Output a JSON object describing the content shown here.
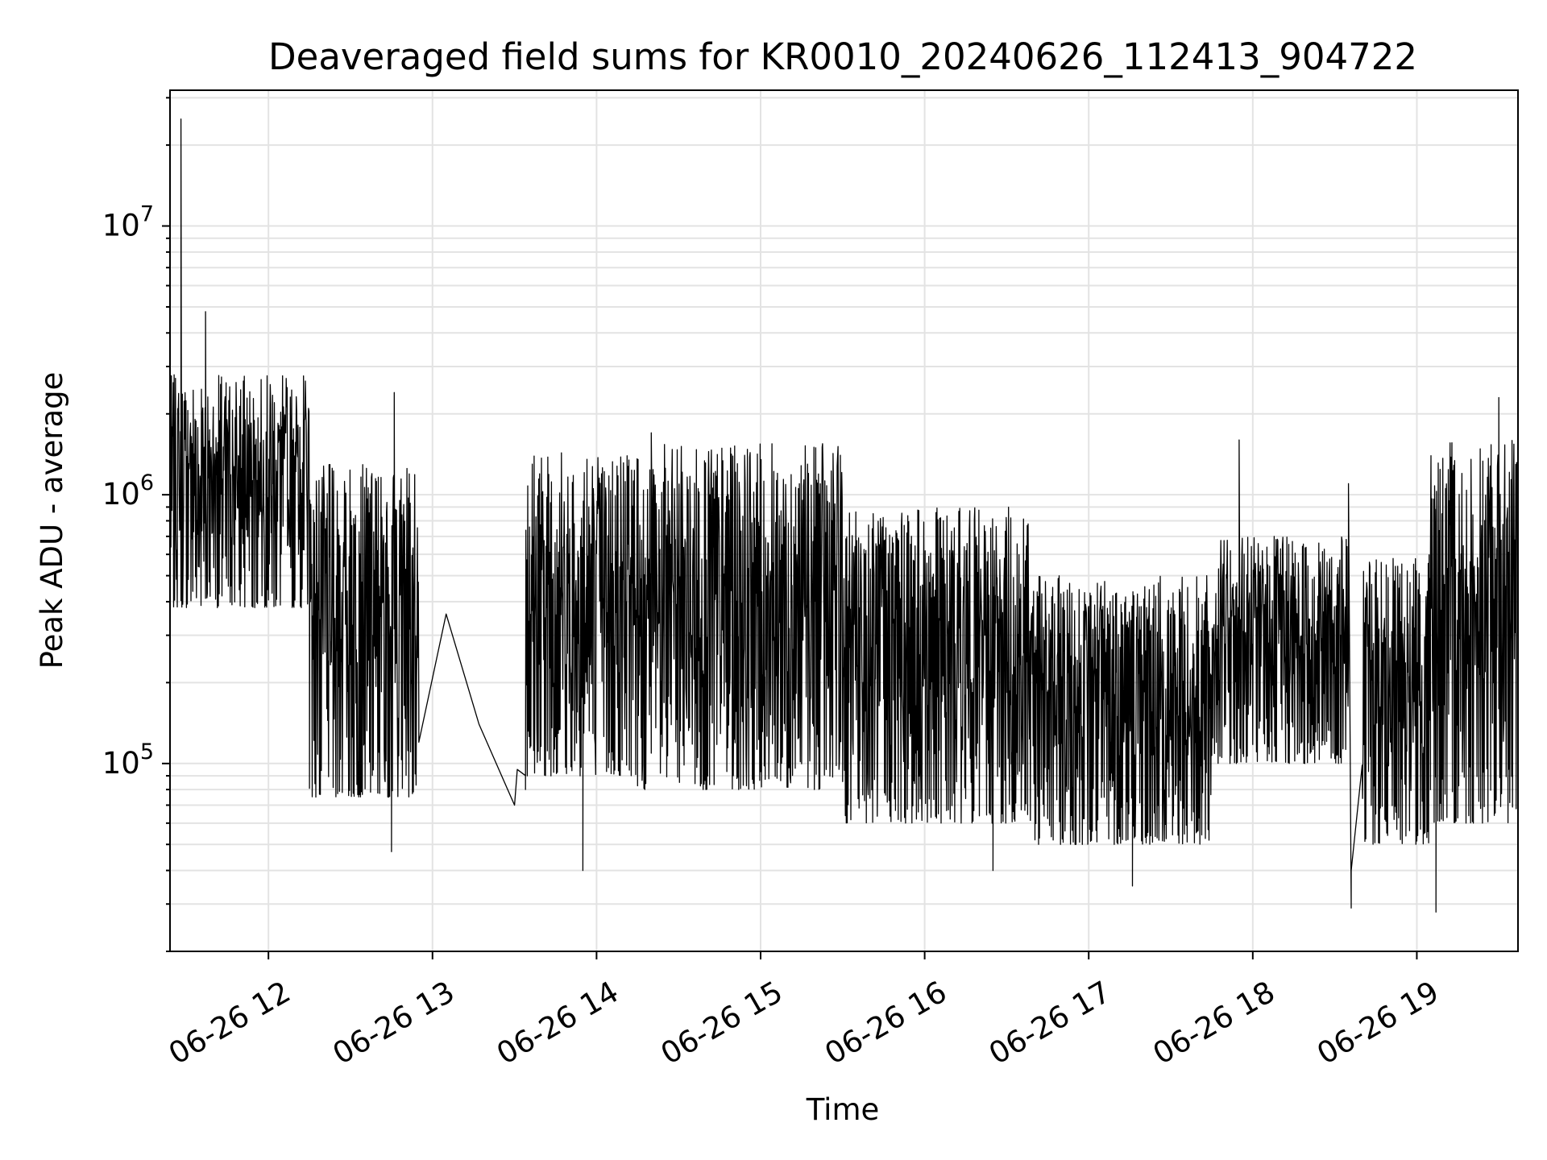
{
  "chart_data": {
    "type": "line",
    "title": "Deaveraged field sums for KR0010_20240626_112413_904722",
    "xlabel": "Time",
    "ylabel": "Peak ADU - average",
    "yscale": "log",
    "ylim": [
      20000,
      32000000
    ],
    "xlim": [
      "2024-06-26T11:24",
      "2024-06-26T19:37"
    ],
    "grid": true,
    "line_color": "#000000",
    "x_ticks": [
      "06-26 12",
      "06-26 13",
      "06-26 14",
      "06-26 15",
      "06-26 16",
      "06-26 17",
      "06-26 18",
      "06-26 19"
    ],
    "y_ticks": [
      {
        "base": "10",
        "exp": "5",
        "value": 100000
      },
      {
        "base": "10",
        "exp": "6",
        "value": 1000000
      },
      {
        "base": "10",
        "exp": "7",
        "value": 10000000
      }
    ],
    "segments": [
      {
        "from": "2024-06-26T11:24",
        "to": "2024-06-26T12:15",
        "low": 380000,
        "high": 2800000,
        "extremes": [
          {
            "x": "2024-06-26T11:28",
            "y": 25000000
          },
          {
            "x": "2024-06-26T11:37",
            "y": 4800000
          }
        ]
      },
      {
        "from": "2024-06-26T12:15",
        "to": "2024-06-26T12:55",
        "low": 75000,
        "high": 1300000,
        "extremes": [
          {
            "x": "2024-06-26T12:46",
            "y": 2400000
          },
          {
            "x": "2024-06-26T12:45",
            "y": 47000
          }
        ]
      },
      {
        "from": "2024-06-26T13:34",
        "to": "2024-06-26T14:15",
        "low": 90000,
        "high": 1500000,
        "extremes": [
          {
            "x": "2024-06-26T13:55",
            "y": 40000
          }
        ]
      },
      {
        "from": "2024-06-26T14:15",
        "to": "2024-06-26T15:30",
        "low": 80000,
        "high": 1550000,
        "extremes": [
          {
            "x": "2024-06-26T14:20",
            "y": 1700000
          }
        ]
      },
      {
        "from": "2024-06-26T15:30",
        "to": "2024-06-26T16:40",
        "low": 60000,
        "high": 900000,
        "extremes": [
          {
            "x": "2024-06-26T16:25",
            "y": 40000
          }
        ]
      },
      {
        "from": "2024-06-26T16:40",
        "to": "2024-06-26T17:45",
        "low": 50000,
        "high": 500000,
        "extremes": [
          {
            "x": "2024-06-26T17:16",
            "y": 35000
          }
        ]
      },
      {
        "from": "2024-06-26T17:45",
        "to": "2024-06-26T18:35",
        "low": 100000,
        "high": 700000,
        "extremes": [
          {
            "x": "2024-06-26T17:55",
            "y": 1600000
          },
          {
            "x": "2024-06-26T18:35",
            "y": 1100000
          }
        ]
      },
      {
        "from": "2024-06-26T18:40",
        "to": "2024-06-26T19:05",
        "low": 50000,
        "high": 600000,
        "extremes": [
          {
            "x": "2024-06-26T18:36",
            "y": 29000
          }
        ]
      },
      {
        "from": "2024-06-26T19:05",
        "to": "2024-06-26T19:37",
        "low": 60000,
        "high": 1600000,
        "extremes": [
          {
            "x": "2024-06-26T19:07",
            "y": 28000
          },
          {
            "x": "2024-06-26T19:30",
            "y": 2300000
          }
        ]
      }
    ],
    "sparse_points": [
      {
        "x": "2024-06-26T12:55",
        "y": 120000
      },
      {
        "x": "2024-06-26T13:05",
        "y": 360000
      },
      {
        "x": "2024-06-26T13:17",
        "y": 140000
      },
      {
        "x": "2024-06-26T13:30",
        "y": 70000
      },
      {
        "x": "2024-06-26T13:31",
        "y": 95000
      },
      {
        "x": "2024-06-26T13:34",
        "y": 80000
      },
      {
        "x": "2024-06-26T18:36",
        "y": 40000
      },
      {
        "x": "2024-06-26T18:47",
        "y": 560000
      }
    ]
  }
}
